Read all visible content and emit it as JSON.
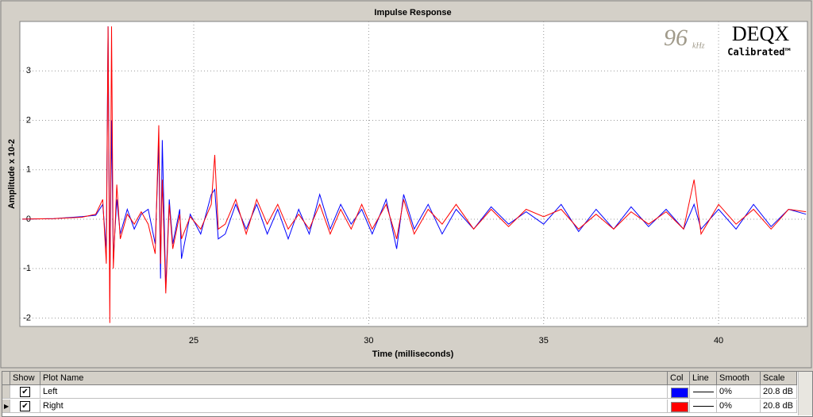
{
  "chart_data": {
    "type": "line",
    "title": "Impulse Response",
    "x_label": "Time (milliseconds)",
    "y_label": "Amplitude x 10-2",
    "xlim": [
      20.03,
      42.54
    ],
    "ylim": [
      -2.17,
      4.0
    ],
    "xticks": [
      25,
      30,
      35,
      40
    ],
    "yticks": [
      -2,
      -1,
      0,
      1,
      2,
      3
    ],
    "grid": true,
    "x": [
      20.1,
      21.0,
      21.8,
      22.2,
      22.4,
      22.5,
      22.55,
      22.6,
      22.65,
      22.7,
      22.8,
      22.9,
      23.1,
      23.3,
      23.5,
      23.7,
      23.9,
      24.0,
      24.05,
      24.1,
      24.2,
      24.3,
      24.4,
      24.6,
      24.65,
      24.9,
      25.2,
      25.5,
      25.6,
      25.7,
      25.9,
      26.2,
      26.5,
      26.8,
      27.1,
      27.4,
      27.7,
      28.0,
      28.3,
      28.6,
      28.9,
      29.2,
      29.5,
      29.8,
      30.1,
      30.5,
      30.8,
      31.0,
      31.3,
      31.7,
      32.1,
      32.5,
      33.0,
      33.5,
      34.0,
      34.5,
      35.0,
      35.5,
      36.0,
      36.5,
      37.0,
      37.5,
      38.0,
      38.5,
      39.0,
      39.3,
      39.5,
      40.0,
      40.5,
      41.0,
      41.5,
      42.0,
      42.5
    ],
    "series": [
      {
        "name": "Left",
        "color": "#0000ff",
        "values": [
          0,
          0.01,
          0.05,
          0.08,
          0.3,
          -0.6,
          3.9,
          -1.3,
          2.0,
          -0.8,
          0.4,
          -0.3,
          0.2,
          -0.2,
          0.1,
          0.2,
          -0.5,
          1.5,
          -1.2,
          1.6,
          -1.4,
          0.4,
          -0.5,
          0.2,
          -0.8,
          0.1,
          -0.3,
          0.5,
          0.6,
          -0.4,
          -0.3,
          0.3,
          -0.2,
          0.3,
          -0.3,
          0.2,
          -0.4,
          0.2,
          -0.3,
          0.5,
          -0.2,
          0.3,
          -0.1,
          0.2,
          -0.3,
          0.4,
          -0.6,
          0.5,
          -0.2,
          0.3,
          -0.3,
          0.2,
          -0.2,
          0.25,
          -0.1,
          0.15,
          -0.1,
          0.3,
          -0.25,
          0.2,
          -0.2,
          0.25,
          -0.15,
          0.2,
          -0.2,
          0.3,
          -0.2,
          0.2,
          -0.2,
          0.3,
          -0.15,
          0.2,
          0.1
        ]
      },
      {
        "name": "Right",
        "color": "#ff0000",
        "values": [
          0,
          0.01,
          0.04,
          0.1,
          0.4,
          -0.9,
          3.9,
          -2.1,
          3.9,
          -1.0,
          0.7,
          -0.4,
          0.1,
          -0.1,
          0.15,
          -0.1,
          -0.7,
          1.9,
          -0.9,
          0.8,
          -1.5,
          0.3,
          -0.6,
          0.1,
          -0.4,
          0.05,
          -0.2,
          0.3,
          1.3,
          -0.2,
          -0.1,
          0.4,
          -0.3,
          0.4,
          -0.1,
          0.3,
          -0.2,
          0.1,
          -0.2,
          0.3,
          -0.3,
          0.2,
          -0.2,
          0.3,
          -0.2,
          0.3,
          -0.4,
          0.4,
          -0.3,
          0.2,
          -0.1,
          0.3,
          -0.2,
          0.2,
          -0.15,
          0.2,
          0.05,
          0.2,
          -0.2,
          0.1,
          -0.2,
          0.15,
          -0.1,
          0.15,
          -0.2,
          0.8,
          -0.3,
          0.3,
          -0.1,
          0.2,
          -0.2,
          0.2,
          0.15
        ]
      }
    ]
  },
  "logo": {
    "rate": "96",
    "rate_unit": "kHz",
    "brand": "DEQX",
    "tagline": "Calibrated™"
  },
  "plot_table": {
    "columns": [
      "Show",
      "Plot Name",
      "Col",
      "Line",
      "Smooth",
      "Scale"
    ],
    "rows": [
      {
        "smooth": "0%",
        "scale": "20.8 dB"
      },
      {
        "smooth": "0%",
        "scale": "20.8 dB"
      }
    ]
  }
}
